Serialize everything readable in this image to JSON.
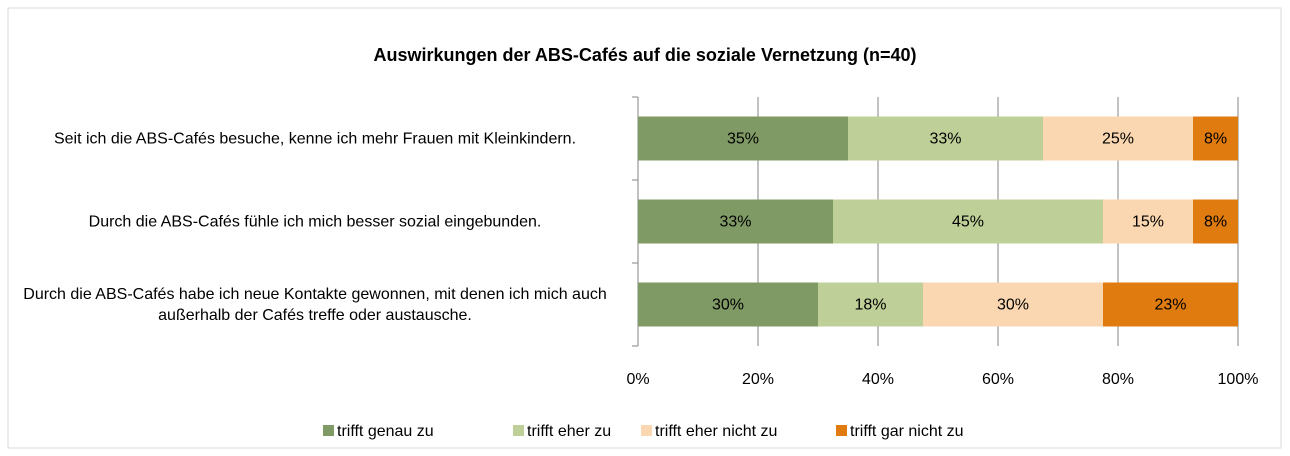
{
  "chart_data": {
    "type": "stacked_bar_horizontal",
    "title": "Auswirkungen der ABS-Cafés auf die soziale Vernetzung (n=40)",
    "categories": [
      "Seit ich die ABS-Cafés besuche, kenne ich mehr Frauen mit Kleinkindern.",
      "Durch die ABS-Cafés fühle ich mich besser sozial eingebunden.",
      "Durch die ABS-Cafés habe ich neue Kontakte gewonnen, mit denen ich mich auch außerhalb der Cafés treffe oder austausche."
    ],
    "series": [
      {
        "name": "trifft genau zu",
        "color": "#7f9a65",
        "values": [
          35,
          32.5,
          30
        ],
        "value_labels": [
          "35%",
          "33%",
          "30%"
        ]
      },
      {
        "name": "trifft eher zu",
        "color": "#bfcf98",
        "values": [
          32.5,
          45,
          17.5
        ],
        "value_labels": [
          "33%",
          "45%",
          "18%"
        ]
      },
      {
        "name": "trifft eher nicht zu",
        "color": "#fad7b1",
        "values": [
          25,
          15,
          30
        ],
        "value_labels": [
          "25%",
          "15%",
          "30%"
        ]
      },
      {
        "name": "trifft gar nicht zu",
        "color": "#e07b10",
        "values": [
          7.5,
          7.5,
          22.5
        ],
        "value_labels": [
          "8%",
          "8%",
          "23%"
        ]
      }
    ],
    "xlim": [
      0,
      100
    ],
    "xticks": [
      {
        "value": 0,
        "label": "0%"
      },
      {
        "value": 20,
        "label": "20%"
      },
      {
        "value": 40,
        "label": "40%"
      },
      {
        "value": 60,
        "label": "60%"
      },
      {
        "value": 80,
        "label": "80%"
      },
      {
        "value": 100,
        "label": "100%"
      }
    ],
    "grid": true,
    "legend": "bottom"
  }
}
